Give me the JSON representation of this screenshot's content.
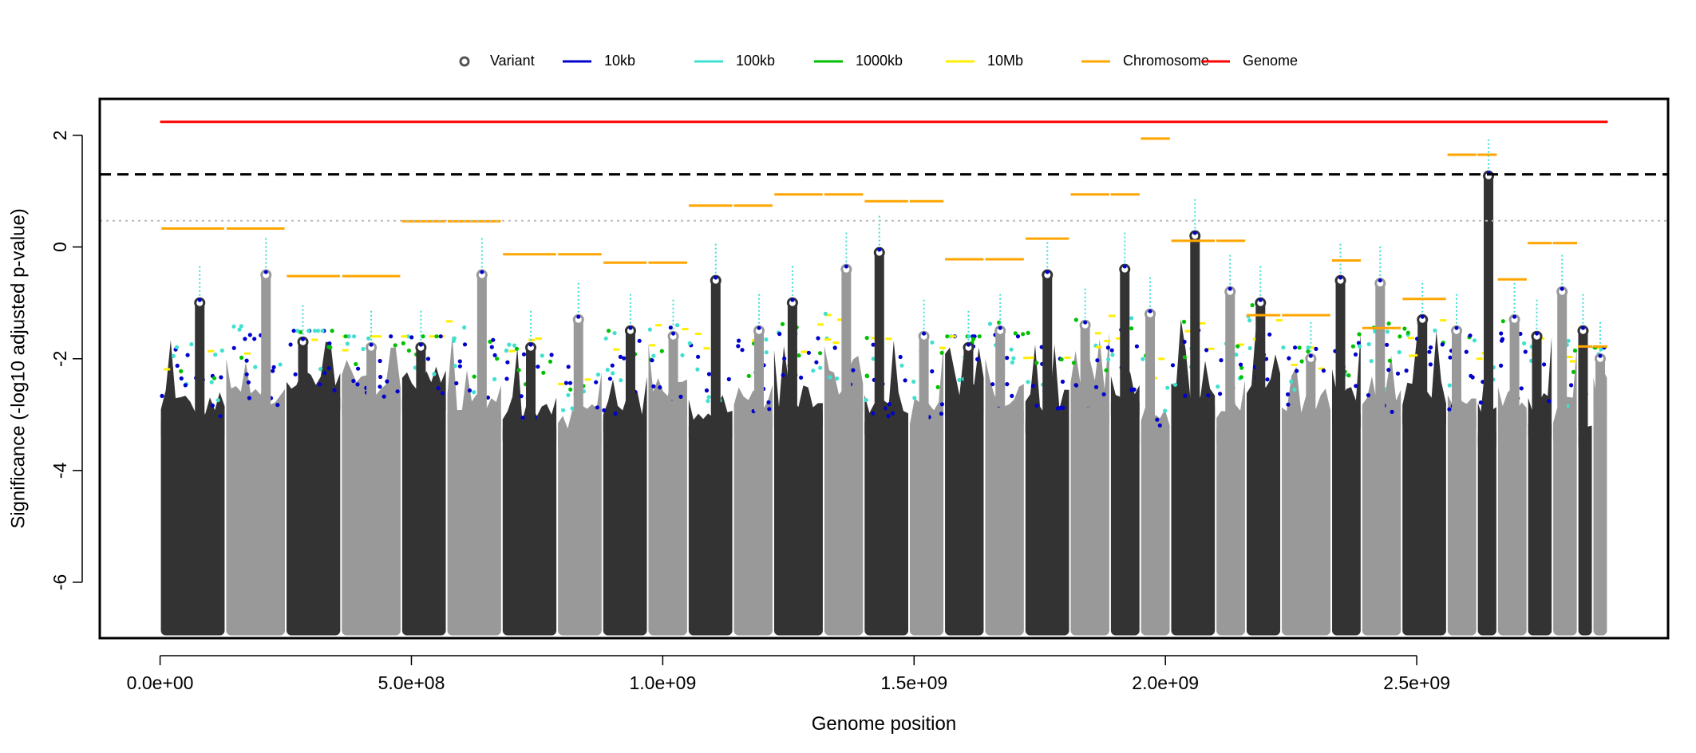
{
  "chart_data": {
    "type": "scatter",
    "title": "",
    "xlabel": "Genome position",
    "ylabel": "Significance (-log10 adjusted p-value)",
    "xlim": [
      -120000000,
      3000000000
    ],
    "ylim": [
      -7.0,
      2.65
    ],
    "x_ticks": [
      {
        "value": 0,
        "label": "0.0e+00"
      },
      {
        "value": 500000000,
        "label": "5.0e+08"
      },
      {
        "value": 1000000000,
        "label": "1.0e+09"
      },
      {
        "value": 1500000000,
        "label": "1.5e+09"
      },
      {
        "value": 2000000000,
        "label": "2.0e+09"
      },
      {
        "value": 2500000000,
        "label": "2.5e+09"
      }
    ],
    "y_ticks": [
      {
        "value": 2,
        "label": "2"
      },
      {
        "value": 0,
        "label": "0"
      },
      {
        "value": -2,
        "label": "-2"
      },
      {
        "value": -4,
        "label": "-4"
      },
      {
        "value": -6,
        "label": "-6"
      }
    ],
    "legend": {
      "placement": "top",
      "entries": [
        {
          "label": "Variant",
          "symbol": "circle",
          "color": "#555555"
        },
        {
          "label": "10kb",
          "symbol": "line",
          "color": "#0000cd"
        },
        {
          "label": "100kb",
          "symbol": "line",
          "color": "#40e0d0"
        },
        {
          "label": "1000kb",
          "symbol": "line",
          "color": "#00c000"
        },
        {
          "label": "10Mb",
          "symbol": "line",
          "color": "#ffee00"
        },
        {
          "label": "Chromosome",
          "symbol": "line",
          "color": "#ffa500"
        },
        {
          "label": "Genome",
          "symbol": "line",
          "color": "#ff0000"
        }
      ]
    },
    "reference_lines": [
      {
        "y": 1.3,
        "style": "dashed",
        "color": "#000000"
      },
      {
        "y": 0.47,
        "style": "dotted",
        "color": "#bbbbbb"
      }
    ],
    "genome_line": {
      "y": 2.24,
      "x_start": 0,
      "x_end": 2880000000,
      "color": "#ff0000"
    },
    "colors": {
      "dark": "#333333",
      "light": "#999999",
      "blue": "#0000cd",
      "cyan": "#40e0d0",
      "green": "#00c000",
      "yellow": "#ffee00",
      "orange": "#ffa500"
    },
    "chromosomes": [
      {
        "start": 0,
        "end": 130000000,
        "peak": -1.0,
        "chrom": 0.33
      },
      {
        "start": 130000000,
        "end": 250000000,
        "peak": -0.5,
        "chrom": 0.33
      },
      {
        "start": 250000000,
        "end": 360000000,
        "peak": -1.7,
        "chrom": -0.52
      },
      {
        "start": 360000000,
        "end": 480000000,
        "peak": -1.8,
        "chrom": -0.52
      },
      {
        "start": 480000000,
        "end": 570000000,
        "peak": -1.8,
        "chrom": 0.46
      },
      {
        "start": 570000000,
        "end": 680000000,
        "peak": -0.5,
        "chrom": 0.46
      },
      {
        "start": 680000000,
        "end": 790000000,
        "peak": -1.8,
        "chrom": -0.13
      },
      {
        "start": 790000000,
        "end": 880000000,
        "peak": -1.3,
        "chrom": -0.13
      },
      {
        "start": 880000000,
        "end": 970000000,
        "peak": -1.5,
        "chrom": -0.28
      },
      {
        "start": 970000000,
        "end": 1050000000,
        "peak": -1.6,
        "chrom": -0.28
      },
      {
        "start": 1050000000,
        "end": 1140000000,
        "peak": -0.6,
        "chrom": 0.74
      },
      {
        "start": 1140000000,
        "end": 1220000000,
        "peak": -1.5,
        "chrom": 0.74
      },
      {
        "start": 1220000000,
        "end": 1320000000,
        "peak": -1.0,
        "chrom": 0.94
      },
      {
        "start": 1320000000,
        "end": 1400000000,
        "peak": -0.4,
        "chrom": 0.94
      },
      {
        "start": 1400000000,
        "end": 1490000000,
        "peak": -0.1,
        "chrom": 0.82
      },
      {
        "start": 1490000000,
        "end": 1560000000,
        "peak": -1.6,
        "chrom": 0.82
      },
      {
        "start": 1560000000,
        "end": 1640000000,
        "peak": -1.8,
        "chrom": -0.22
      },
      {
        "start": 1640000000,
        "end": 1720000000,
        "peak": -1.5,
        "chrom": -0.22
      },
      {
        "start": 1720000000,
        "end": 1810000000,
        "peak": -0.5,
        "chrom": 0.15
      },
      {
        "start": 1810000000,
        "end": 1890000000,
        "peak": -1.4,
        "chrom": 0.94
      },
      {
        "start": 1890000000,
        "end": 1950000000,
        "peak": -0.4,
        "chrom": 0.94
      },
      {
        "start": 1950000000,
        "end": 2010000000,
        "peak": -1.2,
        "chrom": 1.94
      },
      {
        "start": 2010000000,
        "end": 2100000000,
        "peak": 0.2,
        "chrom": 0.11
      },
      {
        "start": 2100000000,
        "end": 2160000000,
        "peak": -0.8,
        "chrom": 0.11
      },
      {
        "start": 2160000000,
        "end": 2230000000,
        "peak": -1.0,
        "chrom": -1.22
      },
      {
        "start": 2230000000,
        "end": 2330000000,
        "peak": -2.0,
        "chrom": -1.22
      },
      {
        "start": 2330000000,
        "end": 2390000000,
        "peak": -0.6,
        "chrom": -0.24
      },
      {
        "start": 2390000000,
        "end": 2470000000,
        "peak": -0.65,
        "chrom": -1.45
      },
      {
        "start": 2470000000,
        "end": 2560000000,
        "peak": -1.3,
        "chrom": -0.93
      },
      {
        "start": 2560000000,
        "end": 2620000000,
        "peak": -1.5,
        "chrom": 1.65
      },
      {
        "start": 2620000000,
        "end": 2660000000,
        "peak": 1.27,
        "chrom": 1.65
      },
      {
        "start": 2660000000,
        "end": 2720000000,
        "peak": -1.3,
        "chrom": -0.58
      },
      {
        "start": 2720000000,
        "end": 2770000000,
        "peak": -1.6,
        "chrom": 0.07
      },
      {
        "start": 2770000000,
        "end": 2820000000,
        "peak": -0.8,
        "chrom": 0.07
      },
      {
        "start": 2820000000,
        "end": 2850000000,
        "peak": -1.5,
        "chrom": -1.78
      },
      {
        "start": 2850000000,
        "end": 2880000000,
        "peak": -2.0,
        "chrom": -1.78
      }
    ]
  }
}
